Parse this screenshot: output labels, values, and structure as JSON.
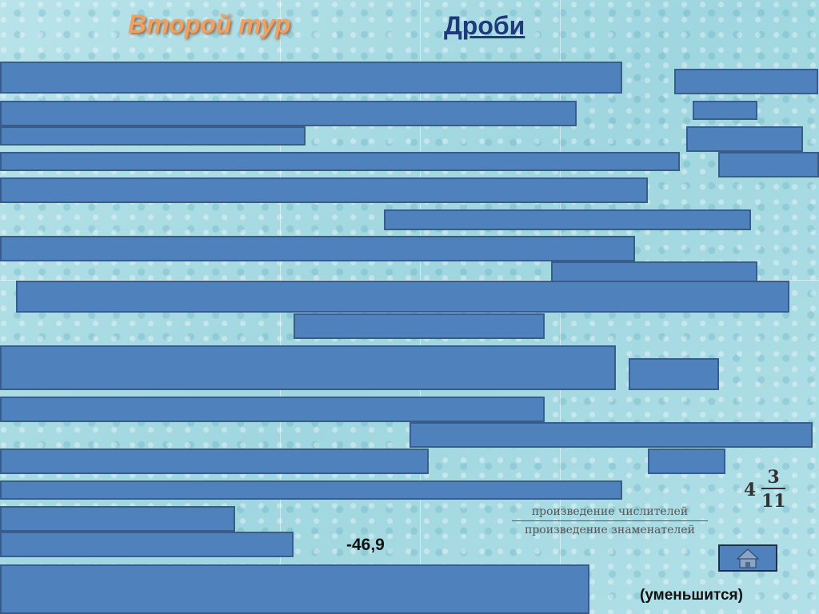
{
  "header": {
    "round": "Второй тур",
    "topic": "Дроби"
  },
  "answers": {
    "number": "-46,9",
    "mixed_fraction": {
      "whole": "4",
      "numerator": "3",
      "denominator": "11"
    },
    "rule": {
      "numerator": "произведение числителей",
      "denominator": "произведение знаменателей"
    },
    "note": "(уменьшится)"
  }
}
